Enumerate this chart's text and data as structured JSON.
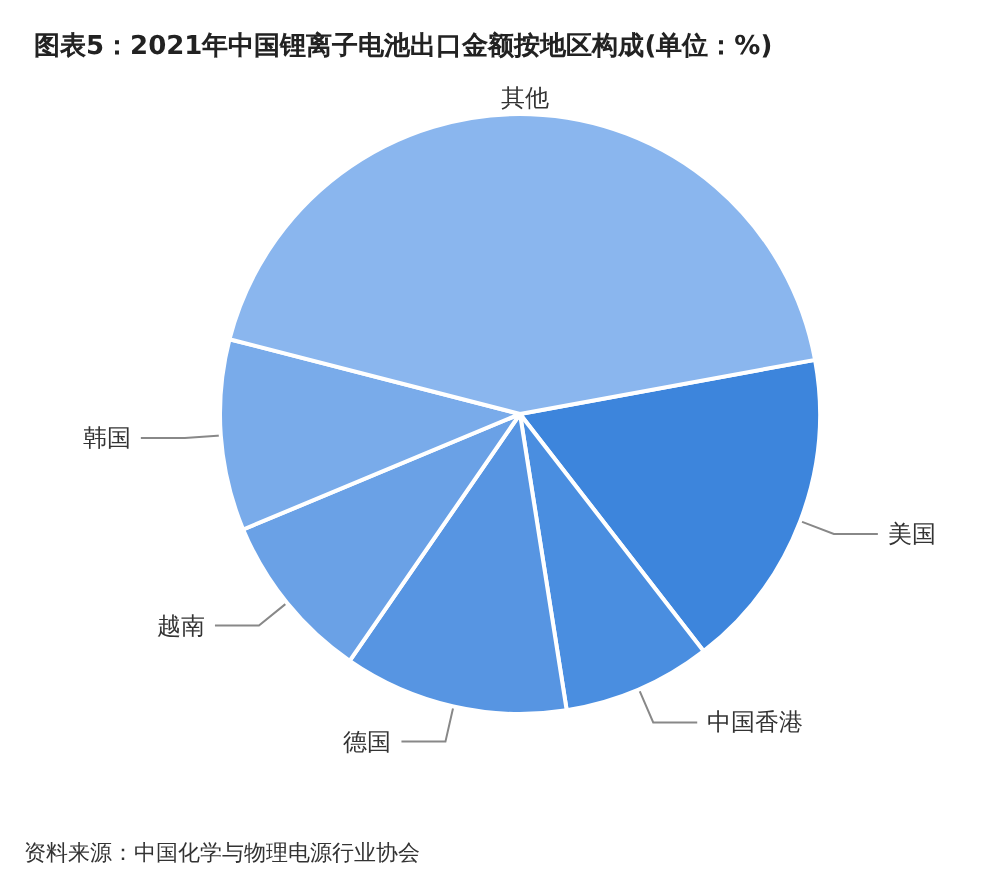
{
  "chart_data": {
    "type": "pie",
    "title": "图表5：2021年中国锂离子电池出口金额按地区构成(单位：%)",
    "categories": [
      "美国",
      "中国香港",
      "德国",
      "越南",
      "韩国",
      "其他"
    ],
    "values": [
      17.4,
      8.0,
      12.1,
      9.1,
      10.3,
      43.1
    ],
    "colors": [
      "#3d85dc",
      "#4a8ee0",
      "#5795e2",
      "#6aa1e6",
      "#79abea",
      "#8ab6ee"
    ],
    "annotations": [
      "资料来源：中国化学与物理电源行业协会"
    ]
  }
}
